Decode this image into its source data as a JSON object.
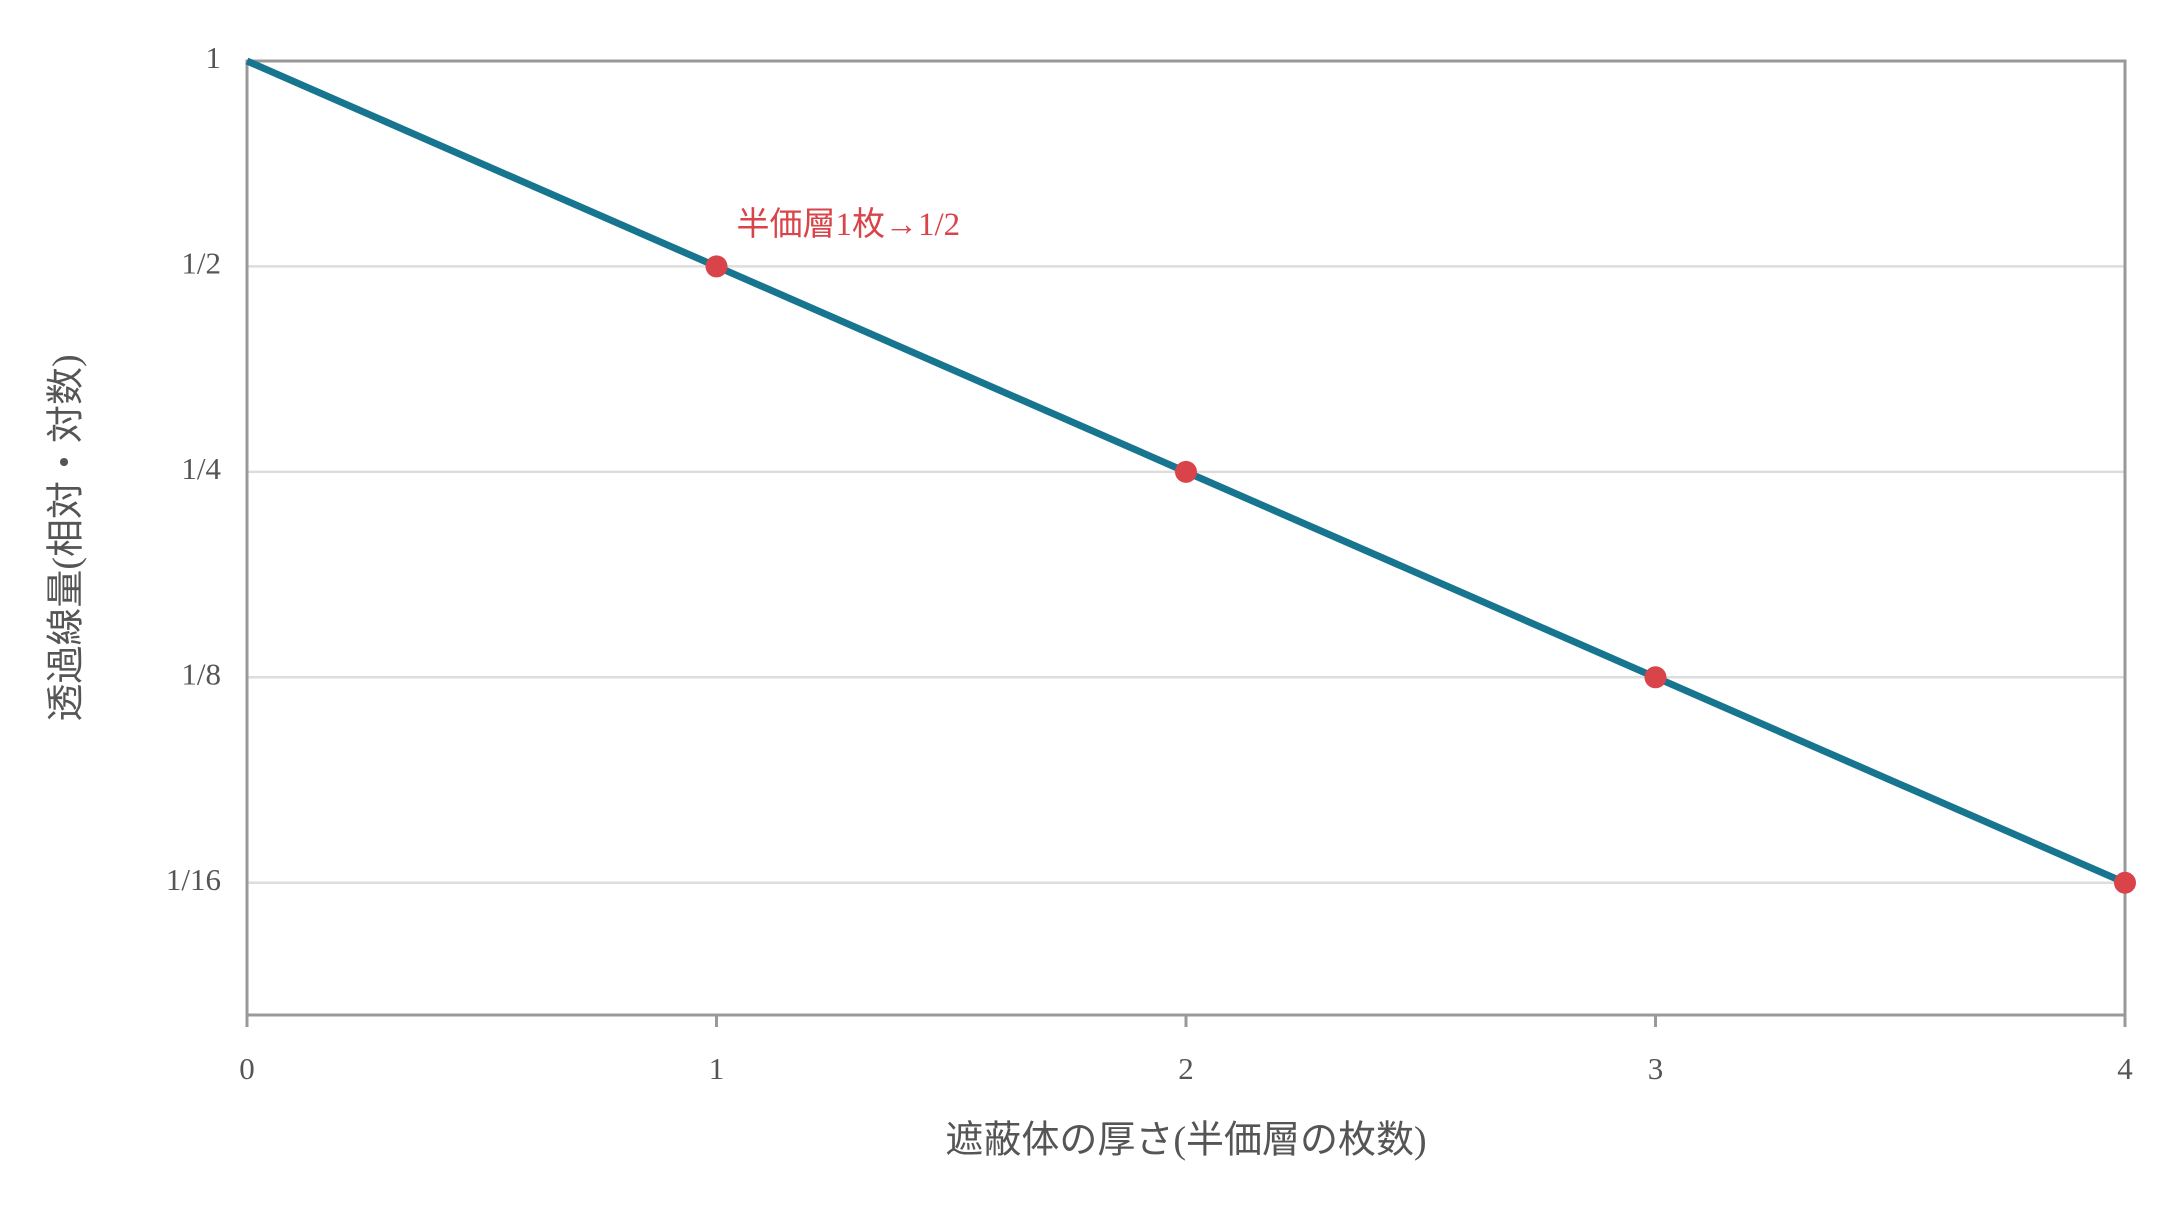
{
  "chart_data": {
    "type": "line",
    "x_label": "遮蔽体の厚さ(半価層の枚数)",
    "y_label": "透過線量(相対・対数)",
    "x": [
      0,
      1,
      2,
      3,
      4
    ],
    "values": [
      1,
      0.5,
      0.25,
      0.125,
      0.0625
    ],
    "color": "#17758f",
    "points": {
      "x": [
        1,
        2,
        3,
        4
      ],
      "values": [
        0.5,
        0.25,
        0.125,
        0.0625
      ],
      "color": "#d9434a"
    },
    "annotation": {
      "text": "半価層1枚→1/2",
      "color": "#d9434a"
    },
    "xlim": [
      0,
      4
    ],
    "xticks": [
      0,
      1,
      2,
      3,
      4
    ],
    "ylim": [
      0.04,
      1
    ],
    "log_y": true,
    "yticks": [
      1,
      {
        "value": 0.5,
        "label": "1/2"
      },
      {
        "value": 0.25,
        "label": "1/4"
      },
      {
        "value": 0.125,
        "label": "1/8"
      },
      {
        "value": 0.0625,
        "label": "1/16"
      }
    ],
    "grid": true
  }
}
